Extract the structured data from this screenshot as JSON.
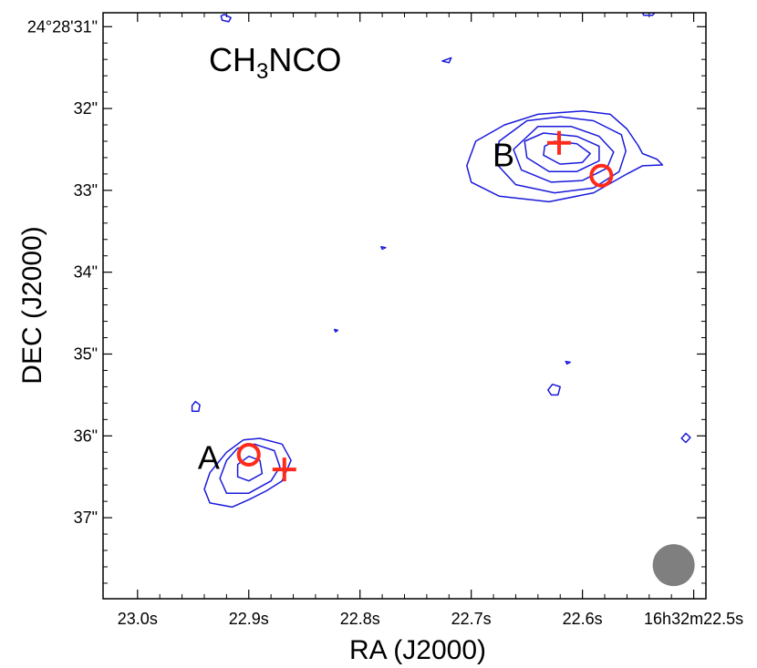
{
  "chart_data": {
    "type": "contour",
    "title": "CH3NCO",
    "title_parts": {
      "prefix": "CH",
      "subscript": "3",
      "suffix": "NCO"
    },
    "xlabel": "RA (J2000)",
    "ylabel": "DEC (J2000)",
    "x_ticks": [
      {
        "value": 23.0,
        "label": "23.0s"
      },
      {
        "value": 22.9,
        "label": "22.9s"
      },
      {
        "value": 22.8,
        "label": "22.8s"
      },
      {
        "value": 22.7,
        "label": "22.7s"
      },
      {
        "value": 22.6,
        "label": "22.6s"
      },
      {
        "value": 22.5,
        "label": "16h32m22.5s"
      }
    ],
    "y_ticks": [
      {
        "value": 31,
        "label": "24°28'31\""
      },
      {
        "value": 32,
        "label": "32\""
      },
      {
        "value": 33,
        "label": "33\""
      },
      {
        "value": 34,
        "label": "34\""
      },
      {
        "value": 35,
        "label": "35\""
      },
      {
        "value": 36,
        "label": "36\""
      },
      {
        "value": 37,
        "label": "37\""
      }
    ],
    "xlim": [
      23.031,
      22.489
    ],
    "ylim": [
      37.99,
      30.83
    ],
    "sources": [
      {
        "name": "A",
        "label": "A",
        "label_pos": [
          22.936,
          36.27
        ]
      },
      {
        "name": "B",
        "label": "B",
        "label_pos": [
          22.671,
          32.57
        ]
      }
    ],
    "markers": [
      {
        "source": "A",
        "shape": "plus",
        "ra": 22.868,
        "dec": 36.41
      },
      {
        "source": "A",
        "shape": "circle",
        "ra": 22.9,
        "dec": 36.23
      },
      {
        "source": "B",
        "shape": "plus",
        "ra": 22.621,
        "dec": 32.42
      },
      {
        "source": "B",
        "shape": "circle",
        "ra": 22.583,
        "dec": 32.82
      }
    ],
    "contours": [
      {
        "group": "B",
        "level": 1,
        "points": [
          [
            22.67,
            32.2
          ],
          [
            22.64,
            32.07
          ],
          [
            22.6,
            32.03
          ],
          [
            22.575,
            32.07
          ],
          [
            22.56,
            32.25
          ],
          [
            22.55,
            32.45
          ],
          [
            22.546,
            32.55
          ],
          [
            22.533,
            32.62
          ],
          [
            22.528,
            32.69
          ],
          [
            22.546,
            32.7
          ],
          [
            22.56,
            32.8
          ],
          [
            22.59,
            33.03
          ],
          [
            22.63,
            33.14
          ],
          [
            22.675,
            33.07
          ],
          [
            22.7,
            32.9
          ],
          [
            22.704,
            32.7
          ],
          [
            22.696,
            32.4
          ]
        ]
      },
      {
        "group": "B",
        "level": 2,
        "points": [
          [
            22.65,
            32.15
          ],
          [
            22.62,
            32.1
          ],
          [
            22.59,
            32.15
          ],
          [
            22.565,
            32.32
          ],
          [
            22.561,
            32.52
          ],
          [
            22.567,
            32.77
          ],
          [
            22.59,
            32.97
          ],
          [
            22.625,
            33.03
          ],
          [
            22.66,
            32.93
          ],
          [
            22.677,
            32.68
          ],
          [
            22.675,
            32.4
          ]
        ]
      },
      {
        "group": "B",
        "level": 3,
        "points": [
          [
            22.64,
            32.22
          ],
          [
            22.61,
            32.22
          ],
          [
            22.585,
            32.34
          ],
          [
            22.572,
            32.53
          ],
          [
            22.578,
            32.73
          ],
          [
            22.6,
            32.88
          ],
          [
            22.628,
            32.9
          ],
          [
            22.655,
            32.75
          ],
          [
            22.662,
            32.5
          ]
        ]
      },
      {
        "group": "B",
        "level": 4,
        "points": [
          [
            22.635,
            32.3
          ],
          [
            22.605,
            32.34
          ],
          [
            22.585,
            32.46
          ],
          [
            22.585,
            32.64
          ],
          [
            22.605,
            32.77
          ],
          [
            22.63,
            32.77
          ],
          [
            22.65,
            32.6
          ],
          [
            22.652,
            32.4
          ]
        ]
      },
      {
        "group": "B",
        "level": 5,
        "points": [
          [
            22.625,
            32.4
          ],
          [
            22.605,
            32.43
          ],
          [
            22.593,
            32.55
          ],
          [
            22.6,
            32.66
          ],
          [
            22.62,
            32.68
          ],
          [
            22.635,
            32.57
          ],
          [
            22.634,
            32.46
          ]
        ]
      },
      {
        "group": "A",
        "level": 1,
        "points": [
          [
            22.89,
            36.03
          ],
          [
            22.87,
            36.1
          ],
          [
            22.862,
            36.3
          ],
          [
            22.87,
            36.55
          ],
          [
            22.884,
            36.67
          ],
          [
            22.9,
            36.78
          ],
          [
            22.915,
            36.87
          ],
          [
            22.935,
            36.82
          ],
          [
            22.94,
            36.65
          ],
          [
            22.935,
            36.45
          ],
          [
            22.92,
            36.2
          ],
          [
            22.905,
            36.05
          ]
        ]
      },
      {
        "group": "A",
        "level": 2,
        "points": [
          [
            22.895,
            36.1
          ],
          [
            22.877,
            36.18
          ],
          [
            22.872,
            36.38
          ],
          [
            22.88,
            36.55
          ],
          [
            22.9,
            36.7
          ],
          [
            22.92,
            36.7
          ],
          [
            22.926,
            36.52
          ],
          [
            22.92,
            36.3
          ],
          [
            22.91,
            36.15
          ]
        ]
      },
      {
        "group": "A",
        "level": 3,
        "points": [
          [
            22.9,
            36.25
          ],
          [
            22.89,
            36.3
          ],
          [
            22.888,
            36.46
          ],
          [
            22.9,
            36.55
          ],
          [
            22.91,
            36.5
          ],
          [
            22.91,
            36.35
          ]
        ]
      },
      {
        "group": "noise",
        "level": 1,
        "points": [
          [
            22.922,
            30.85
          ],
          [
            22.916,
            30.89
          ],
          [
            22.918,
            30.94
          ],
          [
            22.924,
            30.92
          ],
          [
            22.925,
            30.87
          ]
        ]
      },
      {
        "group": "noise",
        "level": 1,
        "points": [
          [
            22.546,
            30.83
          ],
          [
            22.535,
            30.83
          ],
          [
            22.537,
            30.86
          ],
          [
            22.545,
            30.86
          ]
        ]
      },
      {
        "group": "noise",
        "level": 1,
        "points": [
          [
            22.726,
            31.42
          ],
          [
            22.718,
            31.38
          ],
          [
            22.72,
            31.44
          ]
        ]
      },
      {
        "group": "noise",
        "level": 1,
        "points": [
          [
            22.948,
            35.58
          ],
          [
            22.944,
            35.62
          ],
          [
            22.945,
            35.7
          ],
          [
            22.951,
            35.7
          ],
          [
            22.951,
            35.63
          ]
        ]
      },
      {
        "group": "noise",
        "level": 1,
        "points": [
          [
            22.627,
            35.37
          ],
          [
            22.62,
            35.4
          ],
          [
            22.622,
            35.5
          ],
          [
            22.628,
            35.5
          ],
          [
            22.631,
            35.44
          ]
        ]
      },
      {
        "group": "noise",
        "level": 1,
        "points": [
          [
            22.507,
            35.97
          ],
          [
            22.503,
            36.02
          ],
          [
            22.507,
            36.08
          ],
          [
            22.511,
            36.03
          ]
        ]
      },
      {
        "group": "noise",
        "level": 1,
        "points": [
          [
            22.781,
            33.69
          ],
          [
            22.777,
            33.7
          ],
          [
            22.78,
            33.72
          ]
        ]
      },
      {
        "group": "noise",
        "level": 1,
        "points": [
          [
            22.823,
            34.7
          ],
          [
            22.82,
            34.71
          ],
          [
            22.822,
            34.73
          ]
        ]
      },
      {
        "group": "noise",
        "level": 1,
        "points": [
          [
            22.615,
            35.09
          ],
          [
            22.611,
            35.1
          ],
          [
            22.614,
            35.12
          ]
        ]
      }
    ],
    "beam": {
      "ra": 22.518,
      "dec": 37.58,
      "shape": "filled-circle",
      "color": "#7f7f7f"
    },
    "colors": {
      "contour": "#1a1adb",
      "marker": "#ff2a1a",
      "beam": "#7f7f7f"
    }
  }
}
